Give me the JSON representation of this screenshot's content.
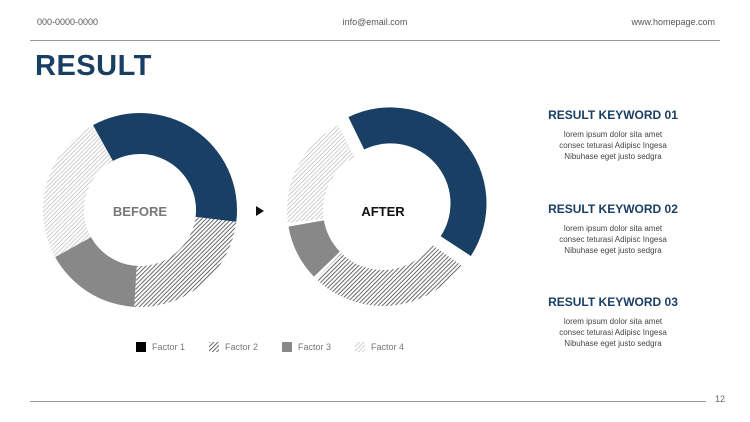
{
  "header": {
    "phone": "000-0000-0000",
    "email": "info@email.com",
    "website": "www.homepage.com"
  },
  "title": "RESULT",
  "chart_data": [
    {
      "type": "pie",
      "center_label": "BEFORE",
      "categories": [
        "Factor 1",
        "Factor 2",
        "Factor 3",
        "Factor 4"
      ],
      "values": [
        35,
        24,
        16,
        25
      ]
    },
    {
      "type": "pie",
      "center_label": "AFTER",
      "categories": [
        "Factor 1",
        "Factor 2",
        "Factor 3",
        "Factor 4"
      ],
      "values": [
        42,
        28,
        10,
        20
      ],
      "exploded": [
        "Factor 1"
      ]
    }
  ],
  "legend": [
    "Factor 1",
    "Factor 2",
    "Factor 3",
    "Factor 4"
  ],
  "colors": {
    "factor1": "#1a3f64",
    "factor2_hatch": "#444444",
    "factor3": "#888888",
    "factor4_hatch": "#cccccc",
    "title": "#1a3f64"
  },
  "keywords": [
    {
      "title": "RESULT KEYWORD 01",
      "lines": [
        "lorem ipsum dolor sita amet",
        "consec teturasi Adipisc Ingesa",
        "Nibuhase eget justo sedgra"
      ]
    },
    {
      "title": "RESULT KEYWORD 02",
      "lines": [
        "lorem ipsum dolor sita amet",
        "consec teturasi Adipisc Ingesa",
        "Nibuhase eget justo sedgra"
      ]
    },
    {
      "title": "RESULT KEYWORD 03",
      "lines": [
        "lorem ipsum dolor sita amet",
        "consec teturasi Adipisc Ingesa",
        "Nibuhase eget justo sedgra"
      ]
    }
  ],
  "page_number": "12"
}
